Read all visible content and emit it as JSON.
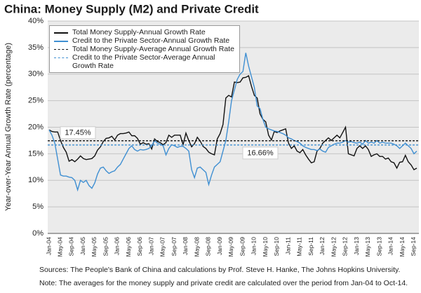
{
  "chart_data": {
    "type": "line",
    "title": "China: Money Supply (M2) and Private Credit",
    "y_label": "Year-over-Year Annual Growth Rate (percentage)",
    "notes": [
      "Sources: The People's Bank of China and calculations by Prof. Steve H. Hanke, The Johns Hopkins University.",
      "Note: The averages for the money supply and private credit are calculated over the period from Jan-04 to Oct-14."
    ],
    "categories": [
      "Jan-04",
      null,
      null,
      null,
      "May-04",
      null,
      null,
      null,
      "Sep-04",
      null,
      null,
      null,
      "Jan-05",
      null,
      null,
      null,
      "May-05",
      null,
      null,
      null,
      "Sep-05",
      null,
      null,
      null,
      "Jan-06",
      null,
      null,
      null,
      "May-06",
      null,
      null,
      null,
      "Sep-06",
      null,
      null,
      null,
      "Jan-07",
      null,
      null,
      null,
      "May-07",
      null,
      null,
      null,
      "Sep-07",
      null,
      null,
      null,
      "Jan-08",
      null,
      null,
      null,
      "May-08",
      null,
      null,
      null,
      "Sep-08",
      null,
      null,
      null,
      "Jan-09",
      null,
      null,
      null,
      "May-09",
      null,
      null,
      null,
      "Sep-09",
      null,
      null,
      null,
      "Jan-10",
      null,
      null,
      null,
      "May-10",
      null,
      null,
      null,
      "Sep-10",
      null,
      null,
      null,
      "Jan-11",
      null,
      null,
      null,
      "May-11",
      null,
      null,
      null,
      "Sep-11",
      null,
      null,
      null,
      "Jan-12",
      null,
      null,
      null,
      "May-12",
      null,
      null,
      null,
      "Sep-12",
      null,
      null,
      null,
      "Jan-13",
      null,
      null,
      null,
      "May-13",
      null,
      null,
      null,
      "Sep-13",
      null,
      null,
      null,
      "Jan-14",
      null,
      null,
      null,
      "May-14",
      null,
      null,
      null,
      "Sep-14",
      null
    ],
    "series": [
      {
        "name": "Total Money Supply-Annual Growth Rate",
        "color": "#111111",
        "values": [
          19.5,
          19.2,
          19.1,
          19.1,
          17.5,
          16.2,
          15.3,
          13.6,
          13.9,
          13.5,
          14.0,
          14.6,
          14.1,
          13.9,
          14.0,
          14.1,
          14.6,
          15.7,
          16.3,
          17.3,
          17.9,
          18.0,
          18.3,
          17.6,
          18.5,
          18.8,
          18.8,
          18.9,
          19.1,
          18.4,
          18.4,
          17.9,
          16.8,
          17.1,
          16.8,
          16.9,
          15.9,
          17.8,
          17.3,
          17.1,
          16.7,
          17.1,
          18.5,
          18.1,
          18.5,
          18.5,
          18.5,
          16.7,
          18.9,
          17.5,
          16.3,
          16.9,
          18.1,
          17.4,
          16.4,
          16.0,
          15.3,
          15.0,
          14.8,
          17.8,
          18.8,
          20.5,
          25.5,
          26.0,
          25.7,
          28.5,
          28.4,
          28.5,
          29.3,
          29.4,
          29.7,
          27.7,
          26.0,
          25.5,
          22.5,
          21.5,
          21.0,
          18.5,
          17.6,
          19.2,
          19.0,
          19.3,
          19.5,
          19.7,
          17.0,
          16.0,
          16.5,
          15.5,
          15.2,
          15.8,
          14.8,
          14.0,
          13.3,
          13.5,
          15.5,
          16.0,
          17.0,
          17.5,
          18.0,
          17.5,
          18.0,
          18.5,
          18.0,
          19.0,
          20.0,
          15.0,
          14.8,
          14.6,
          16.0,
          16.5,
          16.0,
          16.5,
          15.8,
          14.5,
          14.8,
          15.0,
          14.5,
          14.5,
          14.0,
          14.2,
          13.5,
          13.3,
          12.3,
          13.4,
          13.5,
          14.7,
          13.5,
          12.9,
          12.0,
          12.3
        ]
      },
      {
        "name": "Credit to the Private Sector-Annual Growth Rate",
        "color": "#3f8fd2",
        "values": [
          19.5,
          18.5,
          17.0,
          14.0,
          11.0,
          10.8,
          10.8,
          10.6,
          10.5,
          10.0,
          8.2,
          10.0,
          9.6,
          10.0,
          9.0,
          8.5,
          9.5,
          11.2,
          12.3,
          12.5,
          11.8,
          11.3,
          11.6,
          11.8,
          12.5,
          13.0,
          14.0,
          15.0,
          16.0,
          16.5,
          15.8,
          15.5,
          15.8,
          15.7,
          15.8,
          16.0,
          16.5,
          17.5,
          17.0,
          16.8,
          16.5,
          14.8,
          16.0,
          16.7,
          16.5,
          16.2,
          16.4,
          16.4,
          16.0,
          15.5,
          12.0,
          10.5,
          12.3,
          12.5,
          12.0,
          11.5,
          9.2,
          11.0,
          12.5,
          13.0,
          13.5,
          15.5,
          17.5,
          21.0,
          25.0,
          27.0,
          29.0,
          30.0,
          30.5,
          34.0,
          31.5,
          29.5,
          27.5,
          24.0,
          23.5,
          21.5,
          20.0,
          19.7,
          19.5,
          19.3,
          19.2,
          19.0,
          18.8,
          18.5,
          18.0,
          17.8,
          17.5,
          17.3,
          17.0,
          16.5,
          16.2,
          16.0,
          15.8,
          15.8,
          15.6,
          15.9,
          15.5,
          15.3,
          16.2,
          16.5,
          16.8,
          17.0,
          17.0,
          17.2,
          17.5,
          17.2,
          17.3,
          17.1,
          17.0,
          17.2,
          16.8,
          17.5,
          17.0,
          17.2,
          17.0,
          17.5,
          17.0,
          17.2,
          17.0,
          17.0,
          17.0,
          16.8,
          16.5,
          16.0,
          16.5,
          17.0,
          16.5,
          16.0,
          15.0,
          15.5
        ]
      },
      {
        "name": "Total Money Supply-Average Annual Growth Rate",
        "color": "#111111",
        "dashed": true,
        "value": 17.45,
        "value_label": "17.45%"
      },
      {
        "name": "Credit to the Private Sector-Average Annual Growth Rate",
        "color": "#3f8fd2",
        "dashed": true,
        "value": 16.66,
        "value_label": "16.66%"
      }
    ],
    "ylim": [
      0,
      40
    ],
    "yticks": [
      {
        "value": 0,
        "label": "0%"
      },
      {
        "value": 5,
        "label": "5%"
      },
      {
        "value": 10,
        "label": "10%"
      },
      {
        "value": 15,
        "label": "15%"
      },
      {
        "value": 20,
        "label": "20%"
      },
      {
        "value": 25,
        "label": "25%"
      },
      {
        "value": 30,
        "label": "30%"
      },
      {
        "value": 35,
        "label": "35%"
      },
      {
        "value": 40,
        "label": "40%"
      }
    ],
    "grid": true
  }
}
